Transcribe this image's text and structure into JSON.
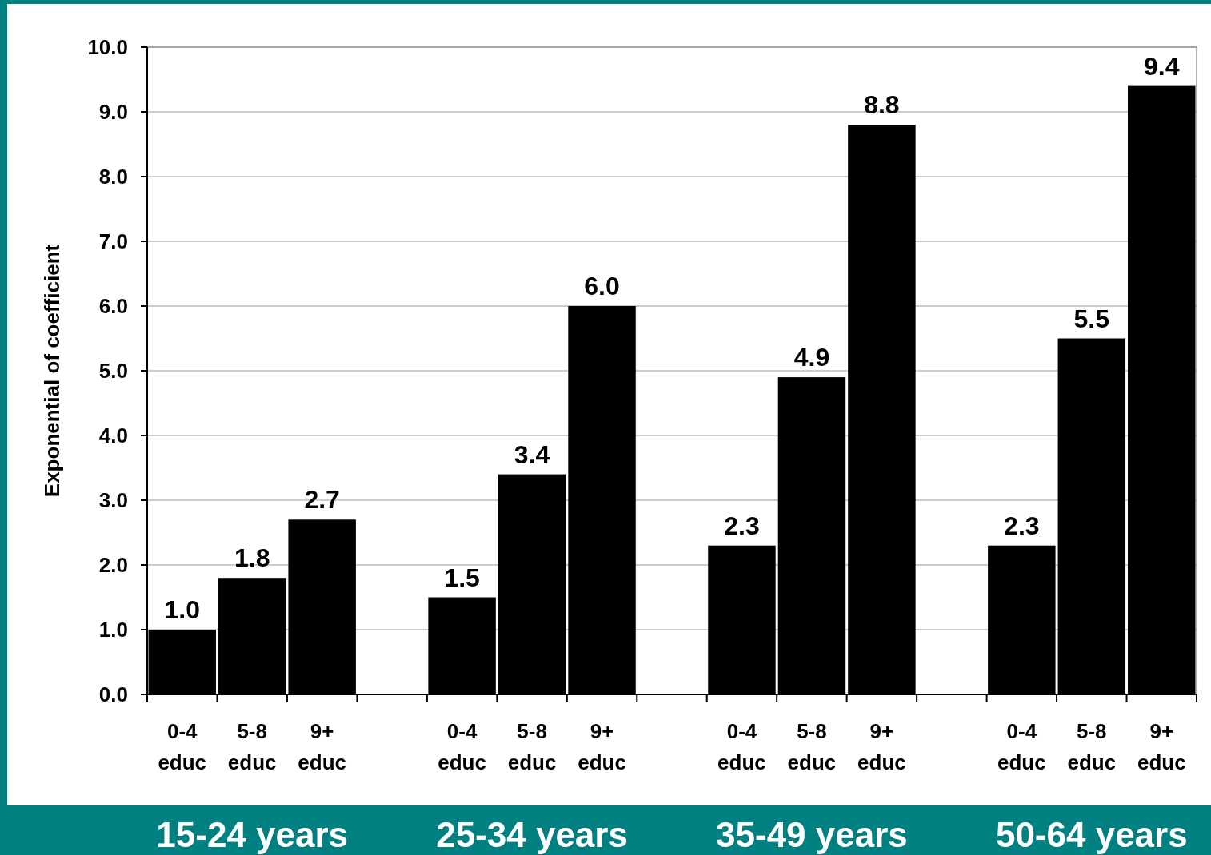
{
  "chart_data": {
    "type": "bar",
    "ylabel": "Exponential of coefficient",
    "categories": [
      "0-4 educ",
      "5-8 educ",
      "9+ educ",
      null,
      "0-4 educ",
      "5-8 educ",
      "9+ educ",
      null,
      "0-4 educ",
      "5-8 educ",
      "9+ educ",
      null,
      "0-4 educ",
      "5-8 educ",
      "9+ educ"
    ],
    "values": [
      1.0,
      1.8,
      2.7,
      null,
      1.5,
      3.4,
      6.0,
      null,
      2.3,
      4.9,
      8.8,
      null,
      2.3,
      5.5,
      9.4
    ],
    "color": "#000000",
    "ylim": [
      0,
      10
    ],
    "yticks": [
      {
        "value": 0,
        "label": "0.0"
      },
      {
        "value": 1,
        "label": "1.0"
      },
      {
        "value": 2,
        "label": "2.0"
      },
      {
        "value": 3,
        "label": "3.0"
      },
      {
        "value": 4,
        "label": "4.0"
      },
      {
        "value": 5,
        "label": "5.0"
      },
      {
        "value": 6,
        "label": "6.0"
      },
      {
        "value": 7,
        "label": "7.0"
      },
      {
        "value": 8,
        "label": "8.0"
      },
      {
        "value": 9,
        "label": "9.0"
      },
      {
        "value": 10,
        "label": "10.0"
      }
    ],
    "value_labels": [
      "1.0",
      "1.8",
      "2.7",
      null,
      "1.5",
      "3.4",
      "6.0",
      null,
      "2.3",
      "4.9",
      "8.8",
      null,
      "2.3",
      "5.5",
      "9.4"
    ],
    "grid": "y",
    "annotations": [
      "15-24 years",
      "25-34 years",
      "35-49 years",
      "50-64 years"
    ]
  }
}
